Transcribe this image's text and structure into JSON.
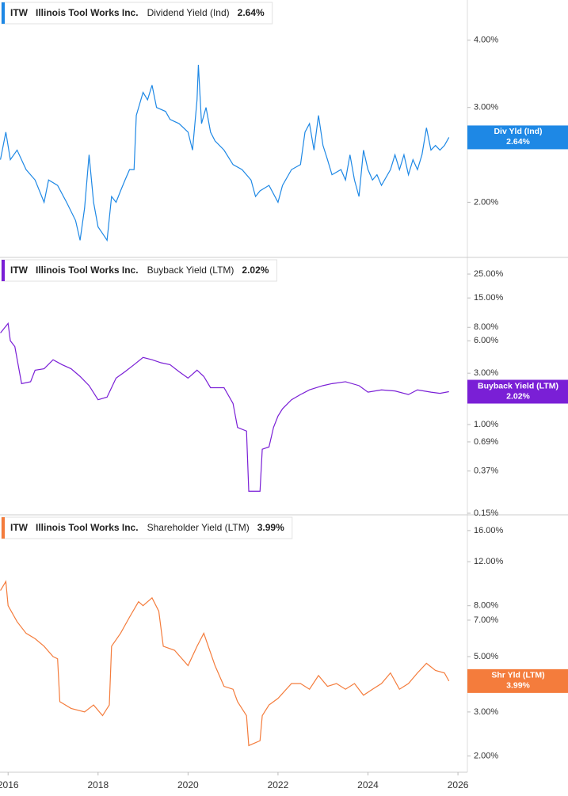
{
  "chart_data": [
    {
      "type": "line",
      "ticker": "ITW",
      "company": "Illinois Tool Works Inc.",
      "log_scale": true,
      "xlim": [
        2015.82,
        2026.21
      ],
      "ylim": [
        1.58,
        4.75
      ],
      "yticks": [
        {
          "value": 2,
          "label": "2.00%"
        },
        {
          "value": 3,
          "label": "3.00%"
        },
        {
          "value": 4,
          "label": "4.00%"
        }
      ],
      "series": [
        {
          "name": "Dividend Yield (Ind)",
          "short_name": "Div Yld (Ind)",
          "color": "#1e88e5",
          "x": [
            2015.83,
            2015.95,
            2016.05,
            2016.2,
            2016.4,
            2016.6,
            2016.8,
            2016.9,
            2017.1,
            2017.3,
            2017.5,
            2017.6,
            2017.7,
            2017.8,
            2017.9,
            2018.0,
            2018.1,
            2018.2,
            2018.3,
            2018.4,
            2018.5,
            2018.6,
            2018.7,
            2018.8,
            2018.85,
            2019.0,
            2019.1,
            2019.2,
            2019.3,
            2019.5,
            2019.6,
            2019.8,
            2020.0,
            2020.1,
            2020.2,
            2020.23,
            2020.3,
            2020.4,
            2020.5,
            2020.6,
            2020.8,
            2021.0,
            2021.2,
            2021.4,
            2021.5,
            2021.6,
            2021.8,
            2022.0,
            2022.1,
            2022.3,
            2022.5,
            2022.6,
            2022.7,
            2022.8,
            2022.9,
            2023.0,
            2023.1,
            2023.2,
            2023.4,
            2023.5,
            2023.6,
            2023.7,
            2023.8,
            2023.9,
            2024.0,
            2024.1,
            2024.2,
            2024.3,
            2024.5,
            2024.6,
            2024.7,
            2024.8,
            2024.9,
            2025.0,
            2025.1,
            2025.2,
            2025.3,
            2025.4,
            2025.5,
            2025.6,
            2025.7,
            2025.8
          ],
          "values": [
            2.4,
            2.7,
            2.4,
            2.5,
            2.3,
            2.2,
            2.0,
            2.2,
            2.15,
            2.0,
            1.85,
            1.7,
            1.95,
            2.45,
            2.0,
            1.8,
            1.75,
            1.7,
            2.05,
            2.0,
            2.1,
            2.2,
            2.3,
            2.3,
            2.9,
            3.2,
            3.1,
            3.3,
            3.0,
            2.95,
            2.85,
            2.8,
            2.7,
            2.5,
            3.1,
            3.6,
            2.8,
            3.0,
            2.7,
            2.6,
            2.5,
            2.35,
            2.3,
            2.2,
            2.05,
            2.1,
            2.15,
            2.0,
            2.15,
            2.3,
            2.35,
            2.7,
            2.8,
            2.5,
            2.9,
            2.55,
            2.4,
            2.25,
            2.3,
            2.2,
            2.45,
            2.2,
            2.05,
            2.5,
            2.3,
            2.2,
            2.25,
            2.15,
            2.3,
            2.45,
            2.3,
            2.45,
            2.25,
            2.4,
            2.3,
            2.45,
            2.75,
            2.5,
            2.55,
            2.5,
            2.55,
            2.64
          ]
        }
      ],
      "last_value": {
        "value": 2.64,
        "label": "2.64%"
      }
    },
    {
      "type": "line",
      "ticker": "ITW",
      "company": "Illinois Tool Works Inc.",
      "log_scale": true,
      "xlim": [
        2015.82,
        2026.21
      ],
      "ylim": [
        0.145,
        35.7
      ],
      "yticks": [
        {
          "value": 0.15,
          "label": "0.15%"
        },
        {
          "value": 0.37,
          "label": "0.37%"
        },
        {
          "value": 0.69,
          "label": "0.69%"
        },
        {
          "value": 1,
          "label": "1.00%"
        },
        {
          "value": 3,
          "label": "3.00%"
        },
        {
          "value": 6,
          "label": "6.00%"
        },
        {
          "value": 8,
          "label": "8.00%"
        },
        {
          "value": 15,
          "label": "15.00%"
        },
        {
          "value": 25,
          "label": "25.00%"
        }
      ],
      "series": [
        {
          "name": "Buyback Yield (LTM)",
          "short_name": "Buyback Yield (LTM)",
          "color": "#7a1fd6",
          "x": [
            2015.83,
            2016.0,
            2016.05,
            2016.15,
            2016.3,
            2016.5,
            2016.6,
            2016.8,
            2017.0,
            2017.2,
            2017.4,
            2017.6,
            2017.8,
            2018.0,
            2018.2,
            2018.4,
            2018.6,
            2018.8,
            2019.0,
            2019.2,
            2019.4,
            2019.6,
            2019.8,
            2020.0,
            2020.2,
            2020.35,
            2020.5,
            2020.8,
            2021.0,
            2021.1,
            2021.3,
            2021.35,
            2021.6,
            2021.65,
            2021.8,
            2021.9,
            2022.0,
            2022.1,
            2022.3,
            2022.5,
            2022.7,
            2023.0,
            2023.2,
            2023.5,
            2023.8,
            2024.0,
            2024.3,
            2024.6,
            2024.9,
            2025.1,
            2025.4,
            2025.6,
            2025.8
          ],
          "values": [
            7.1,
            8.7,
            6.0,
            5.3,
            2.4,
            2.5,
            3.2,
            3.3,
            4.0,
            3.6,
            3.3,
            2.8,
            2.3,
            1.7,
            1.8,
            2.7,
            3.1,
            3.6,
            4.2,
            4.0,
            3.75,
            3.6,
            3.1,
            2.7,
            3.2,
            2.8,
            2.2,
            2.2,
            1.57,
            0.94,
            0.87,
            0.24,
            0.24,
            0.59,
            0.62,
            0.94,
            1.2,
            1.4,
            1.7,
            1.9,
            2.1,
            2.3,
            2.4,
            2.5,
            2.3,
            2.0,
            2.1,
            2.05,
            1.9,
            2.1,
            2.0,
            1.95,
            2.02
          ]
        }
      ],
      "last_value": {
        "value": 2.02,
        "label": "2.02%"
      }
    },
    {
      "type": "line",
      "ticker": "ITW",
      "company": "Illinois Tool Works Inc.",
      "log_scale": true,
      "xlim": [
        2015.82,
        2026.21
      ],
      "ylim": [
        1.72,
        18.5
      ],
      "xticks": [
        2016,
        2018,
        2020,
        2022,
        2024,
        2026
      ],
      "yticks": [
        {
          "value": 2,
          "label": "2.00%"
        },
        {
          "value": 3,
          "label": "3.00%"
        },
        {
          "value": 5,
          "label": "5.00%"
        },
        {
          "value": 7,
          "label": "7.00%"
        },
        {
          "value": 8,
          "label": "8.00%"
        },
        {
          "value": 12,
          "label": "12.00%"
        },
        {
          "value": 16,
          "label": "16.00%"
        }
      ],
      "series": [
        {
          "name": "Shareholder Yield (LTM)",
          "short_name": "Shr Yld (LTM)",
          "color": "#f47c3c",
          "x": [
            2015.83,
            2015.95,
            2016.0,
            2016.2,
            2016.4,
            2016.6,
            2016.8,
            2017.0,
            2017.1,
            2017.15,
            2017.4,
            2017.7,
            2017.9,
            2018.1,
            2018.25,
            2018.3,
            2018.5,
            2018.7,
            2018.9,
            2019.0,
            2019.2,
            2019.35,
            2019.45,
            2019.7,
            2020.0,
            2020.2,
            2020.35,
            2020.6,
            2020.8,
            2021.0,
            2021.1,
            2021.3,
            2021.35,
            2021.6,
            2021.65,
            2021.8,
            2022.0,
            2022.3,
            2022.5,
            2022.7,
            2022.9,
            2023.1,
            2023.3,
            2023.5,
            2023.7,
            2023.9,
            2024.1,
            2024.3,
            2024.5,
            2024.7,
            2024.9,
            2025.1,
            2025.3,
            2025.5,
            2025.7,
            2025.8
          ],
          "values": [
            9.2,
            10.0,
            8.0,
            6.9,
            6.2,
            5.9,
            5.5,
            5.0,
            4.9,
            3.3,
            3.1,
            3.0,
            3.2,
            2.9,
            3.2,
            5.5,
            6.2,
            7.2,
            8.3,
            8.0,
            8.6,
            7.6,
            5.5,
            5.3,
            4.6,
            5.5,
            6.2,
            4.6,
            3.8,
            3.7,
            3.3,
            2.9,
            2.2,
            2.3,
            2.9,
            3.2,
            3.4,
            3.9,
            3.9,
            3.7,
            4.2,
            3.8,
            3.9,
            3.7,
            3.9,
            3.5,
            3.7,
            3.9,
            4.3,
            3.7,
            3.9,
            4.3,
            4.7,
            4.4,
            4.3,
            3.99
          ]
        }
      ],
      "last_value": {
        "value": 3.99,
        "label": "3.99%"
      }
    }
  ]
}
